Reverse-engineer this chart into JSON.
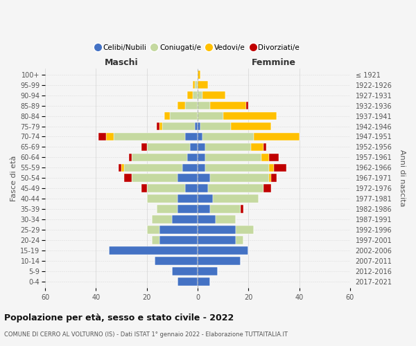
{
  "age_groups": [
    "0-4",
    "5-9",
    "10-14",
    "15-19",
    "20-24",
    "25-29",
    "30-34",
    "35-39",
    "40-44",
    "45-49",
    "50-54",
    "55-59",
    "60-64",
    "65-69",
    "70-74",
    "75-79",
    "80-84",
    "85-89",
    "90-94",
    "95-99",
    "100+"
  ],
  "birth_years": [
    "2017-2021",
    "2012-2016",
    "2007-2011",
    "2002-2006",
    "1997-2001",
    "1992-1996",
    "1987-1991",
    "1982-1986",
    "1977-1981",
    "1972-1976",
    "1967-1971",
    "1962-1966",
    "1957-1961",
    "1952-1956",
    "1947-1951",
    "1942-1946",
    "1937-1941",
    "1932-1936",
    "1927-1931",
    "1922-1926",
    "≤ 1921"
  ],
  "colors": {
    "celibi": "#4472c4",
    "coniugati": "#c5d9a0",
    "vedovi": "#ffc000",
    "divorziati": "#c00000"
  },
  "legend_labels": [
    "Celibi/Nubili",
    "Coniugati/e",
    "Vedovi/e",
    "Divorziati/e"
  ],
  "maschi": {
    "celibi": [
      8,
      10,
      17,
      35,
      15,
      15,
      10,
      8,
      8,
      5,
      8,
      6,
      4,
      3,
      5,
      1,
      0,
      0,
      0,
      0,
      0
    ],
    "coniugati": [
      0,
      0,
      0,
      0,
      3,
      5,
      8,
      8,
      12,
      15,
      18,
      23,
      22,
      17,
      28,
      13,
      11,
      5,
      2,
      1,
      0
    ],
    "vedovi": [
      0,
      0,
      0,
      0,
      0,
      0,
      0,
      0,
      0,
      0,
      0,
      1,
      0,
      0,
      3,
      1,
      2,
      3,
      2,
      1,
      0
    ],
    "divorziati": [
      0,
      0,
      0,
      0,
      0,
      0,
      0,
      0,
      0,
      2,
      3,
      1,
      1,
      2,
      3,
      1,
      0,
      0,
      0,
      0,
      0
    ]
  },
  "femmine": {
    "celibi": [
      5,
      8,
      17,
      20,
      15,
      15,
      7,
      5,
      6,
      4,
      5,
      3,
      3,
      3,
      2,
      1,
      0,
      0,
      0,
      0,
      0
    ],
    "coniugati": [
      0,
      0,
      0,
      0,
      3,
      7,
      8,
      12,
      18,
      22,
      23,
      25,
      22,
      18,
      20,
      12,
      10,
      5,
      2,
      0,
      0
    ],
    "vedovi": [
      0,
      0,
      0,
      0,
      0,
      0,
      0,
      0,
      0,
      0,
      1,
      2,
      3,
      5,
      18,
      16,
      21,
      14,
      9,
      4,
      1
    ],
    "divorziati": [
      0,
      0,
      0,
      0,
      0,
      0,
      0,
      1,
      0,
      3,
      2,
      5,
      4,
      1,
      0,
      0,
      0,
      1,
      0,
      0,
      0
    ]
  },
  "title": "Popolazione per età, sesso e stato civile - 2022",
  "subtitle": "COMUNE DI CERRO AL VOLTURNO (IS) - Dati ISTAT 1° gennaio 2022 - Elaborazione TUTTAITALIA.IT",
  "ylabel_left": "Fasce di età",
  "ylabel_right": "Anni di nascita",
  "header_left": "Maschi",
  "header_right": "Femmine",
  "xlim": 60,
  "bg_color": "#f5f5f5",
  "grid_color": "#cccccc"
}
